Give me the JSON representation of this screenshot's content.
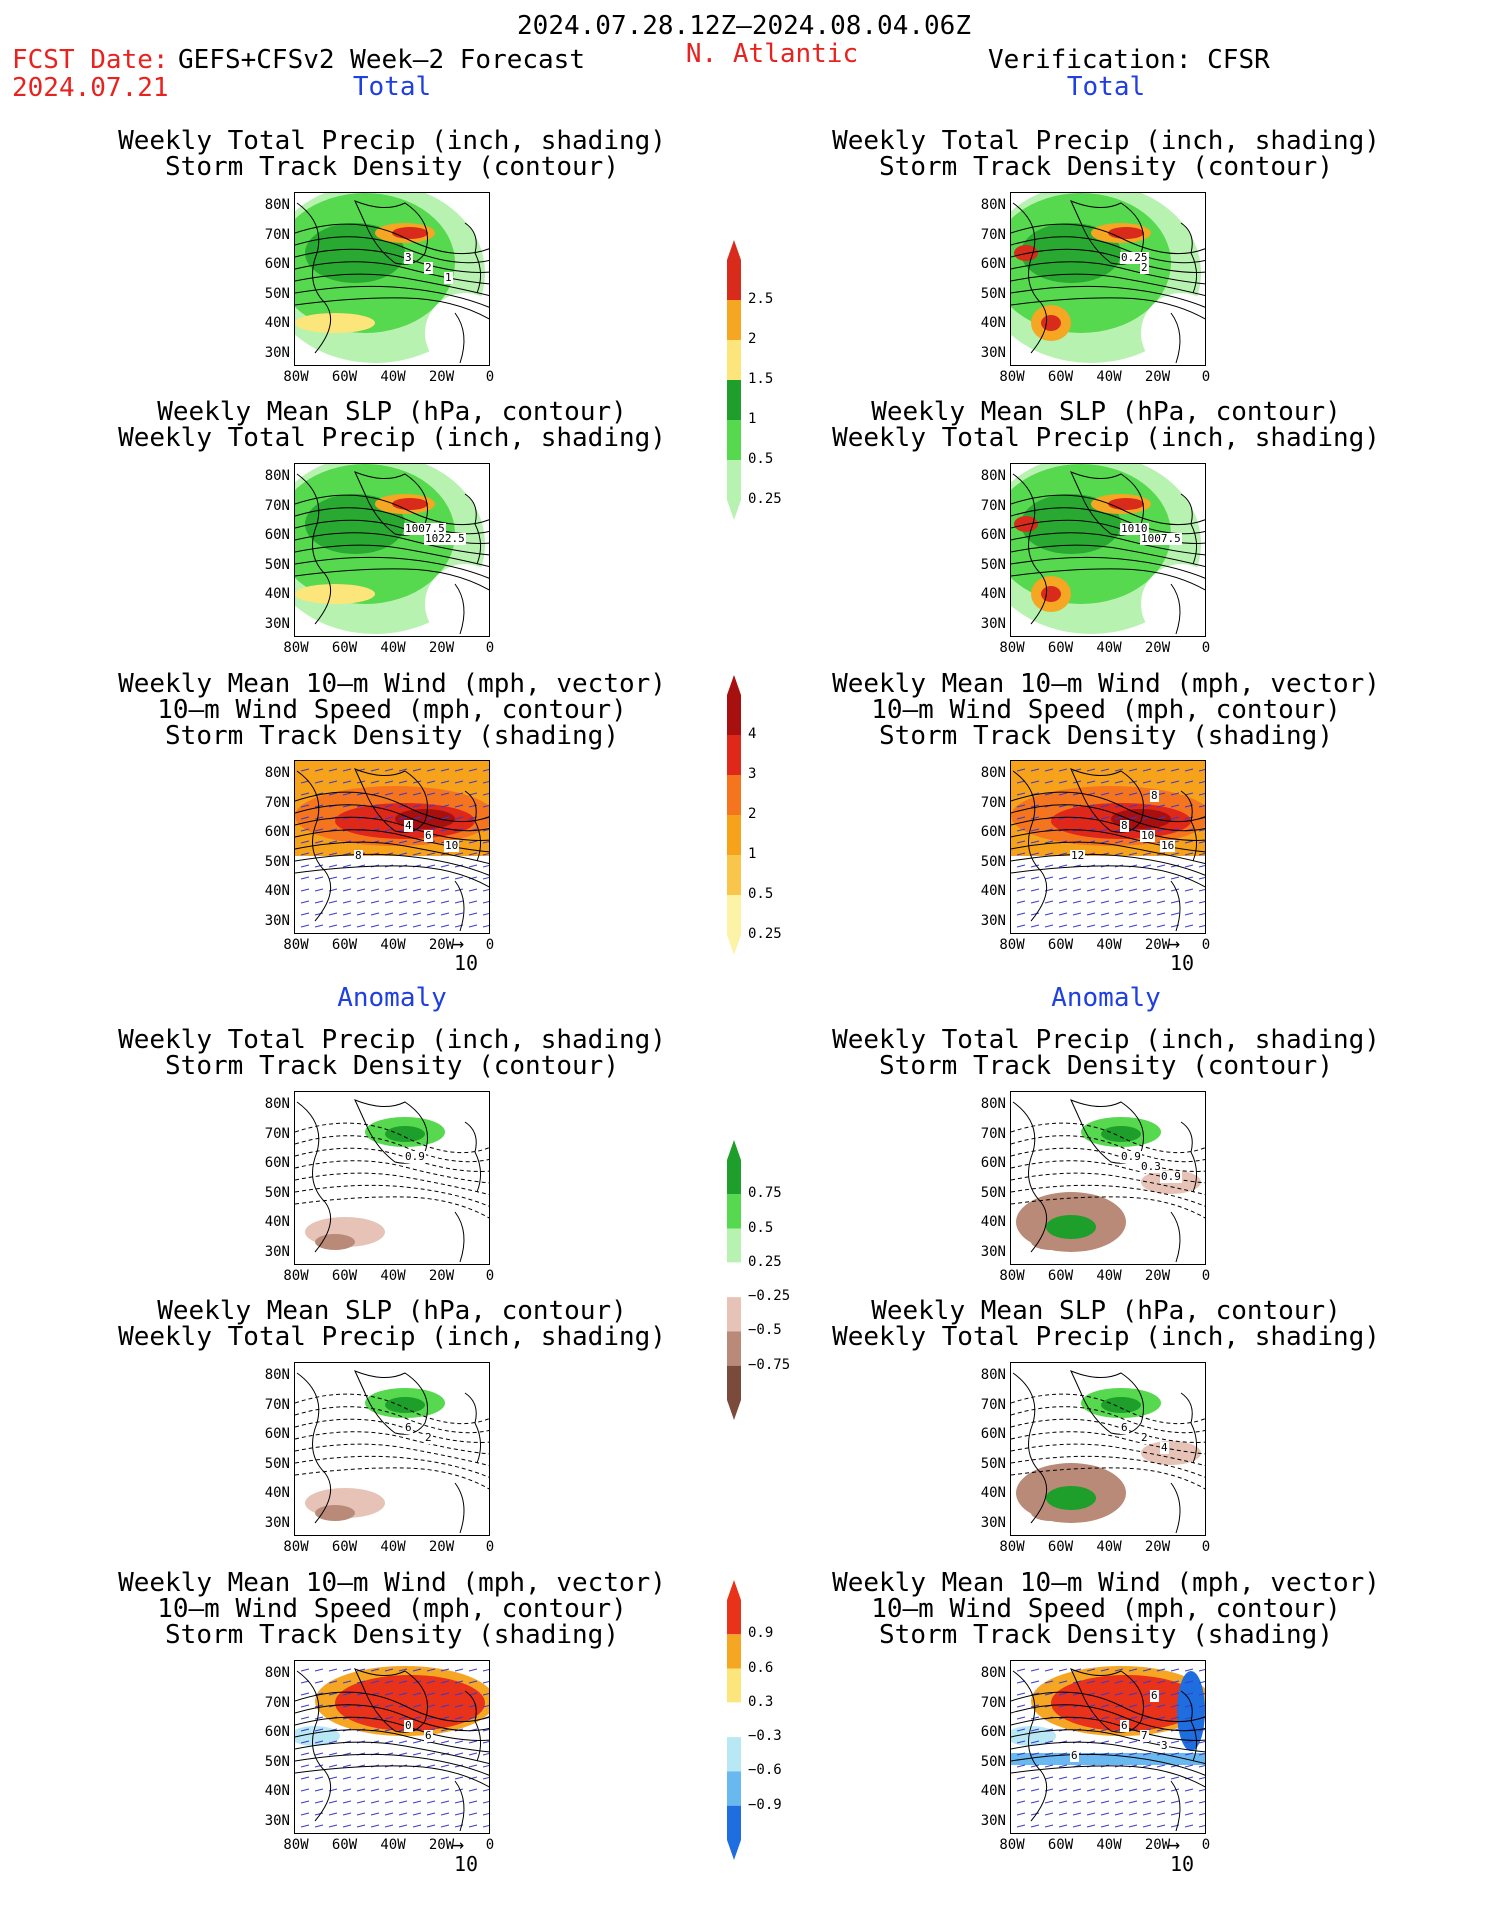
{
  "header": {
    "period": "2024.07.28.12Z–2024.08.04.06Z",
    "fcst_date_label": "FCST Date:",
    "fcst_date": "2024.07.21",
    "forecast_name": "GEFS+CFSv2 Week–2 Forecast",
    "region": "N. Atlantic",
    "verification": "Verification: CFSR"
  },
  "sections": {
    "total": "Total",
    "anomaly": "Anomaly"
  },
  "panel_titles": {
    "precip_storm": [
      "Weekly Total Precip (inch, shading)",
      "Storm Track Density (contour)"
    ],
    "slp_precip": [
      "Weekly Mean SLP (hPa, contour)",
      "Weekly Total Precip (inch, shading)"
    ],
    "wind_storm": [
      "Weekly Mean 10–m Wind (mph, vector)",
      "10–m Wind Speed (mph, contour)",
      "Storm Track Density (shading)"
    ]
  },
  "axes": {
    "lat": [
      "80N",
      "70N",
      "60N",
      "50N",
      "40N",
      "30N"
    ],
    "lon": [
      "80W",
      "60W",
      "40W",
      "20W",
      "0"
    ]
  },
  "vector_scale": "10",
  "colorbars": [
    {
      "labels": [
        "2.5",
        "2",
        "1.5",
        "1",
        "0.5",
        "0.25"
      ],
      "colors": [
        "#d92b1c",
        "#f5a623",
        "#fce57a",
        "#1e9e2a",
        "#56d84f",
        "#b8f2b0"
      ]
    },
    {
      "labels": [
        "4",
        "3",
        "2",
        "1",
        "0.5",
        "0.25"
      ],
      "colors": [
        "#a81010",
        "#e0281a",
        "#f5751e",
        "#f7a21b",
        "#f9c54b",
        "#fdf3a6"
      ]
    },
    {
      "labels": [
        "0.75",
        "0.5",
        "0.25",
        "−0.25",
        "−0.5",
        "−0.75"
      ],
      "colors": [
        "#1e9e2a",
        "#56d84f",
        "#b8f2b0",
        "#ffffff",
        "#e6c3b6",
        "#b98a78",
        "#7a4a3a"
      ]
    },
    {
      "labels": [
        "0.9",
        "0.6",
        "0.3",
        "−0.3",
        "−0.6",
        "−0.9"
      ],
      "colors": [
        "#e8321a",
        "#f5a623",
        "#fce57a",
        "#ffffff",
        "#b9e8f5",
        "#6ab8f0",
        "#1f6ee0"
      ]
    }
  ],
  "contour_labels": {
    "L1": [
      "3",
      "2",
      "1"
    ],
    "R1": [
      "0.25",
      "2"
    ],
    "L2": [
      "1007.5",
      "1022.5"
    ],
    "R2": [
      "1010",
      "1007.5"
    ],
    "L3": [
      "4",
      "6",
      "10",
      "8"
    ],
    "R3": [
      "8",
      "10",
      "16",
      "12",
      "8"
    ],
    "L4": [
      "0.9"
    ],
    "R4": [
      "0.9",
      "0.3",
      "0.9"
    ],
    "L5": [
      "6",
      "2"
    ],
    "R5": [
      "6",
      "2",
      "4"
    ],
    "L6": [
      "0",
      "6"
    ],
    "R6": [
      "6",
      "7",
      "3",
      "6",
      "6"
    ]
  }
}
